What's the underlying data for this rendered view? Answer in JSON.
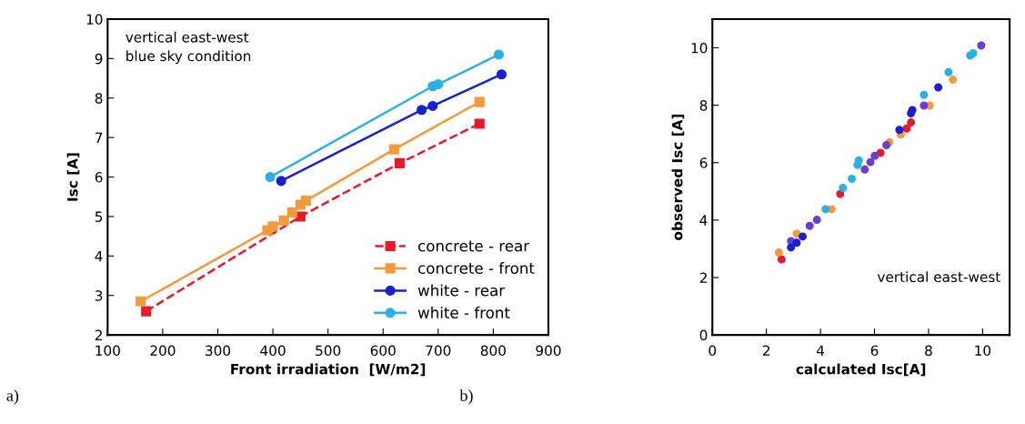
{
  "chart_data": [
    {
      "type": "line",
      "xlabel": "Front irradiation  [W/m2]",
      "ylabel": "Isc [A]",
      "xlim": [
        100,
        900
      ],
      "ylim": [
        2,
        10
      ],
      "xticks": [
        100,
        200,
        300,
        400,
        500,
        600,
        700,
        800,
        900
      ],
      "yticks": [
        2,
        3,
        4,
        5,
        6,
        7,
        8,
        9,
        10
      ],
      "grid": false,
      "legend": "bottom right",
      "annotations": [
        "vertical east-west\nblue sky condition",
        "a)"
      ],
      "series": [
        {
          "name": "concrete - rear",
          "color": "#e8192c",
          "marker": "square",
          "line_style": "dashed",
          "x": [
            170,
            450,
            630,
            775
          ],
          "values": [
            2.6,
            5.0,
            6.35,
            7.35
          ]
        },
        {
          "name": "concrete - front",
          "color": "#f39a3c",
          "marker": "square",
          "line_style": "solid",
          "x": [
            160,
            390,
            400,
            420,
            435,
            450,
            460,
            620,
            775
          ],
          "values": [
            2.85,
            4.65,
            4.75,
            4.9,
            5.1,
            5.3,
            5.4,
            6.7,
            7.9
          ]
        },
        {
          "name": "white - rear",
          "color": "#1a1fd6",
          "marker": "circle",
          "line_style": "solid",
          "x": [
            415,
            670,
            690,
            815
          ],
          "values": [
            5.9,
            7.7,
            7.8,
            8.6
          ]
        },
        {
          "name": "white - front",
          "color": "#2ab0e6",
          "marker": "circle",
          "line_style": "solid",
          "x": [
            395,
            690,
            700,
            810
          ],
          "values": [
            6.0,
            8.3,
            8.35,
            9.1
          ]
        }
      ]
    },
    {
      "type": "scatter",
      "xlabel": "calculated Isc[A]",
      "ylabel": "observed Isc [A]",
      "xlim": [
        0,
        11
      ],
      "ylim": [
        0,
        11
      ],
      "xticks": [
        0,
        2,
        4,
        6,
        8,
        10
      ],
      "yticks": [
        0,
        2,
        4,
        6,
        8,
        10
      ],
      "grid": false,
      "legend": false,
      "marker": "circle",
      "annotations": [
        "vertical east-west",
        "b)"
      ],
      "series": [
        {
          "color": "#e8192c",
          "x": [
            2.56,
            4.73,
            6.22,
            7.19,
            7.35
          ],
          "values": [
            2.63,
            4.91,
            6.34,
            7.19,
            7.4
          ]
        },
        {
          "color": "#f39a3c",
          "x": [
            2.46,
            3.12,
            4.41,
            6.55,
            6.97,
            8.04,
            8.9
          ],
          "values": [
            2.87,
            3.53,
            4.38,
            6.71,
            6.98,
            7.99,
            8.89
          ]
        },
        {
          "color": "#6a3fd0",
          "x": [
            2.91,
            3.6,
            3.87,
            5.64,
            5.85,
            6.01,
            6.44,
            7.83,
            9.95
          ],
          "values": [
            3.27,
            3.8,
            4.01,
            5.76,
            6.02,
            6.24,
            6.61,
            7.99,
            10.08
          ]
        },
        {
          "color": "#1a1fd6",
          "x": [
            2.91,
            3.12,
            3.34,
            6.92,
            7.35,
            7.4,
            8.36
          ],
          "values": [
            3.05,
            3.21,
            3.43,
            7.14,
            7.72,
            7.83,
            8.62
          ]
        },
        {
          "color": "#2ab0e6",
          "x": [
            4.19,
            4.83,
            5.16,
            5.37,
            5.42,
            7.83,
            8.74,
            9.54,
            9.65
          ],
          "values": [
            4.38,
            5.12,
            5.44,
            5.92,
            6.08,
            8.36,
            9.15,
            9.73,
            9.81
          ]
        }
      ]
    }
  ]
}
